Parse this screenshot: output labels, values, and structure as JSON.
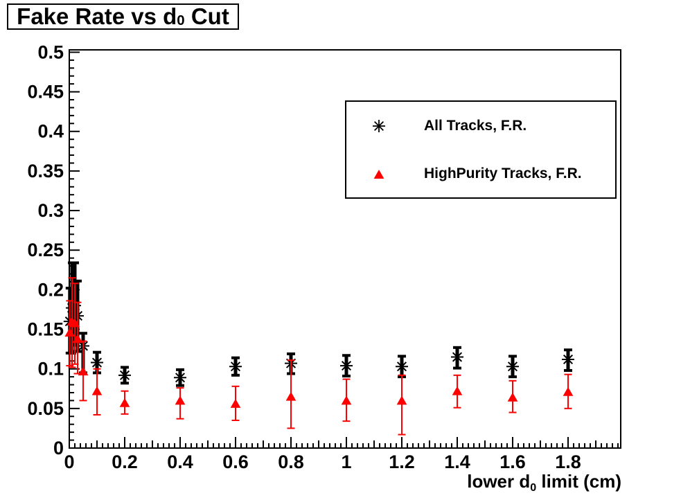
{
  "chart_data": {
    "type": "scatter",
    "title": {
      "pre": "Fake Rate vs d",
      "sub": "0",
      "post": " Cut"
    },
    "x_axis": {
      "range": [
        0,
        1.99
      ],
      "minor_step": 0.02,
      "major": [
        {
          "v": 0,
          "label": "0"
        },
        {
          "v": 0.2,
          "label": "0.2"
        },
        {
          "v": 0.4,
          "label": "0.4"
        },
        {
          "v": 0.6,
          "label": "0.6"
        },
        {
          "v": 0.8,
          "label": "0.8"
        },
        {
          "v": 1,
          "label": "1"
        },
        {
          "v": 1.2,
          "label": "1.2"
        },
        {
          "v": 1.4,
          "label": "1.4"
        },
        {
          "v": 1.6,
          "label": "1.6"
        },
        {
          "v": 1.8,
          "label": "1.8"
        }
      ],
      "title_pre": "lower d",
      "title_sub": "0",
      "title_post": " limit (cm)"
    },
    "y_axis": {
      "range": [
        0,
        0.503
      ],
      "minor_step": 0.01,
      "major": [
        {
          "v": 0,
          "label": "0"
        },
        {
          "v": 0.05,
          "label": "0.05"
        },
        {
          "v": 0.1,
          "label": "0.1"
        },
        {
          "v": 0.15,
          "label": "0.15"
        },
        {
          "v": 0.2,
          "label": "0.2"
        },
        {
          "v": 0.25,
          "label": "0.25"
        },
        {
          "v": 0.3,
          "label": "0.3"
        },
        {
          "v": 0.35,
          "label": "0.35"
        },
        {
          "v": 0.4,
          "label": "0.4"
        },
        {
          "v": 0.45,
          "label": "0.45"
        },
        {
          "v": 0.5,
          "label": "0.5"
        }
      ]
    },
    "grid": false,
    "legend_position": "top-right",
    "series": [
      {
        "name": "All Tracks, F.R.",
        "marker": "asterisk",
        "color": "#000000",
        "points": [
          [
            0.002,
            0.16,
            0.04,
            0.042
          ],
          [
            0.01,
            0.177,
            0.057,
            0.057
          ],
          [
            0.02,
            0.18,
            0.05,
            0.054
          ],
          [
            0.03,
            0.167,
            0.045,
            0.044
          ],
          [
            0.05,
            0.129,
            0.034,
            0.016
          ],
          [
            0.1,
            0.108,
            0.013,
            0.013
          ],
          [
            0.2,
            0.092,
            0.01,
            0.01
          ],
          [
            0.4,
            0.089,
            0.01,
            0.01
          ],
          [
            0.6,
            0.103,
            0.011,
            0.011
          ],
          [
            0.8,
            0.107,
            0.013,
            0.012
          ],
          [
            1.0,
            0.104,
            0.013,
            0.013
          ],
          [
            1.2,
            0.103,
            0.013,
            0.013
          ],
          [
            1.4,
            0.115,
            0.014,
            0.012
          ],
          [
            1.6,
            0.103,
            0.013,
            0.013
          ],
          [
            1.8,
            0.112,
            0.014,
            0.012
          ]
        ]
      },
      {
        "name": "HighPurity Tracks, F.R.",
        "marker": "triangle",
        "color": "#ff0000",
        "points": [
          [
            0.002,
            0.146,
            0.042,
            0.04
          ],
          [
            0.01,
            0.16,
            0.058,
            0.055
          ],
          [
            0.02,
            0.158,
            0.052,
            0.05
          ],
          [
            0.03,
            0.138,
            0.044,
            0.046
          ],
          [
            0.05,
            0.097,
            0.037,
            0.038
          ],
          [
            0.1,
            0.072,
            0.03,
            0.028
          ],
          [
            0.2,
            0.057,
            0.014,
            0.015
          ],
          [
            0.4,
            0.06,
            0.023,
            0.016
          ],
          [
            0.6,
            0.056,
            0.021,
            0.022
          ],
          [
            0.8,
            0.065,
            0.04,
            0.046
          ],
          [
            1.0,
            0.06,
            0.026,
            0.027
          ],
          [
            1.2,
            0.06,
            0.043,
            0.032
          ],
          [
            1.4,
            0.072,
            0.021,
            0.02
          ],
          [
            1.6,
            0.064,
            0.019,
            0.021
          ],
          [
            1.8,
            0.071,
            0.021,
            0.022
          ]
        ]
      }
    ]
  }
}
